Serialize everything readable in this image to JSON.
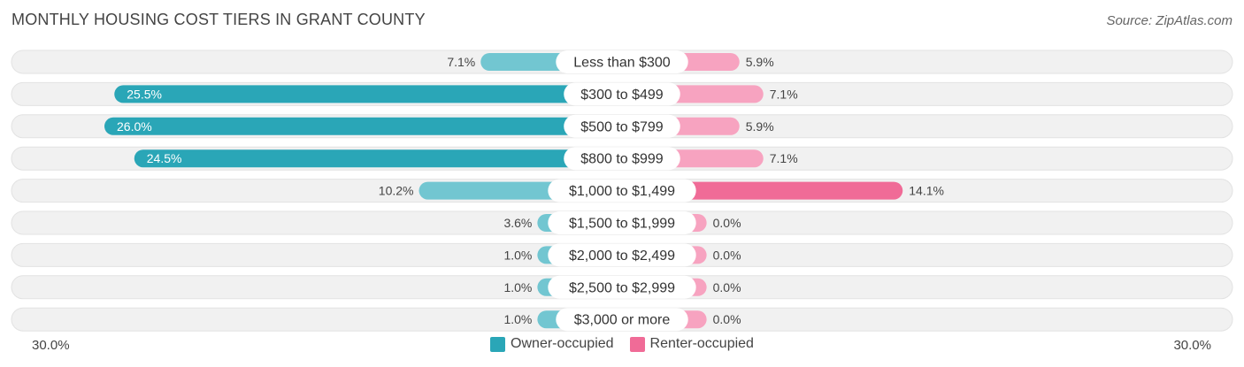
{
  "title": "MONTHLY HOUSING COST TIERS IN GRANT COUNTY",
  "source": "Source: ZipAtlas.com",
  "colors": {
    "owner_dark": "#2aa6b7",
    "owner_light": "#72c6d1",
    "renter_dark": "#f06b97",
    "renter_light": "#f7a3c0",
    "track": "#f1f1f1"
  },
  "chart_data": {
    "type": "bar",
    "orientation": "diverging-horizontal",
    "title": "MONTHLY HOUSING COST TIERS IN GRANT COUNTY",
    "categories": [
      "Less than $300",
      "$300 to $499",
      "$500 to $799",
      "$800 to $999",
      "$1,000 to $1,499",
      "$1,500 to $1,999",
      "$2,000 to $2,499",
      "$2,500 to $2,999",
      "$3,000 or more"
    ],
    "series": [
      {
        "name": "Owner-occupied",
        "values": [
          7.1,
          25.5,
          26.0,
          24.5,
          10.2,
          3.6,
          1.0,
          1.0,
          1.0
        ],
        "labels": [
          "7.1%",
          "25.5%",
          "26.0%",
          "24.5%",
          "10.2%",
          "3.6%",
          "1.0%",
          "1.0%",
          "1.0%"
        ]
      },
      {
        "name": "Renter-occupied",
        "values": [
          5.9,
          7.1,
          5.9,
          7.1,
          14.1,
          0.0,
          0.0,
          0.0,
          0.0
        ],
        "labels": [
          "5.9%",
          "7.1%",
          "5.9%",
          "7.1%",
          "14.1%",
          "0.0%",
          "0.0%",
          "0.0%",
          "0.0%"
        ]
      }
    ],
    "axis_min_label": "30.0%",
    "axis_max_label": "30.0%",
    "xlim": [
      -30,
      30
    ],
    "legend": [
      "Owner-occupied",
      "Renter-occupied"
    ]
  }
}
